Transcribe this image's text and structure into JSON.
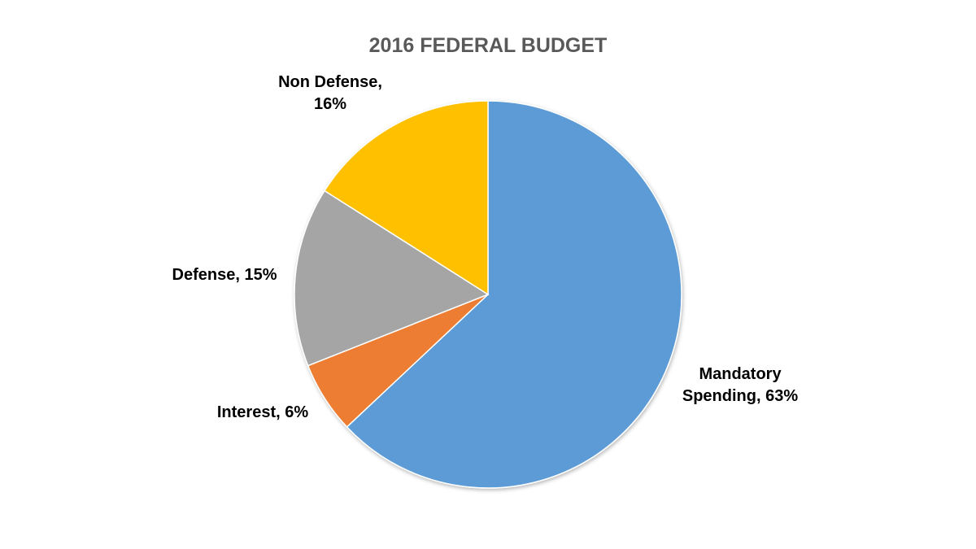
{
  "chart_data": {
    "type": "pie",
    "title": "2016 FEDERAL BUDGET",
    "categories": [
      "Mandatory Spending",
      "Interest",
      "Defense",
      "Non Defense"
    ],
    "values": [
      63,
      6,
      15,
      16
    ],
    "unit": "%",
    "data_labels": [
      [
        "Mandatory",
        "Spending, 63%"
      ],
      [
        "Interest, 6%"
      ],
      [
        "Defense, 15%"
      ],
      [
        "Non Defense,",
        "16%"
      ]
    ],
    "colors": [
      "#5b9bd5",
      "#ed7d31",
      "#a5a5a5",
      "#ffc000"
    ],
    "start_angle": "12 o'clock",
    "direction": "clockwise",
    "legend": "none"
  }
}
